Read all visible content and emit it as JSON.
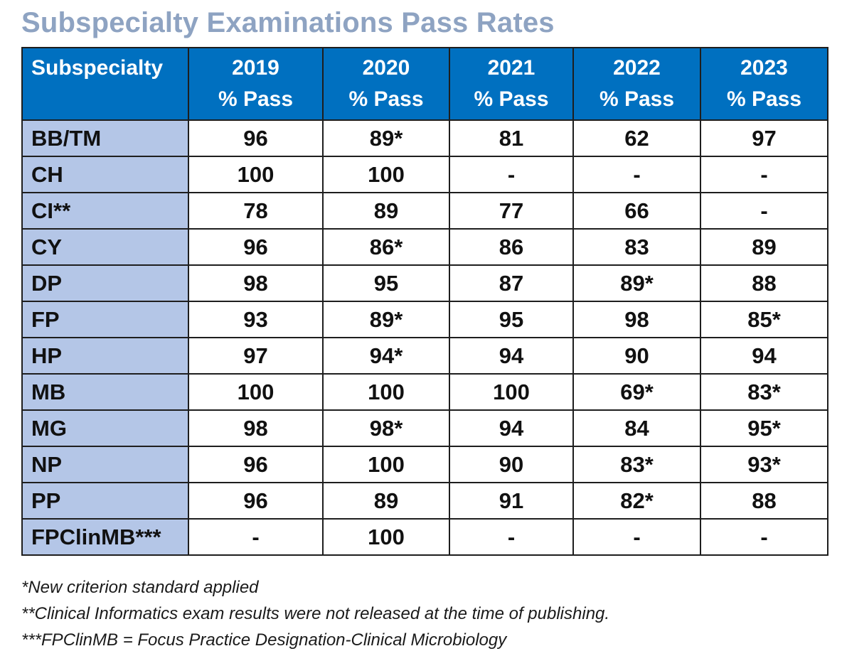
{
  "title": "Subspecialty Examinations Pass Rates",
  "table": {
    "header": {
      "first": "Subspecialty",
      "years": [
        {
          "year": "2019",
          "sub": "% Pass"
        },
        {
          "year": "2020",
          "sub": "% Pass"
        },
        {
          "year": "2021",
          "sub": "% Pass"
        },
        {
          "year": "2022",
          "sub": "% Pass"
        },
        {
          "year": "2023",
          "sub": "% Pass"
        }
      ]
    },
    "rows": [
      {
        "name": "BB/TM",
        "values": [
          "96",
          "89*",
          "81",
          "62",
          "97"
        ]
      },
      {
        "name": "CH",
        "values": [
          "100",
          "100",
          "-",
          "-",
          "-"
        ]
      },
      {
        "name": "CI**",
        "values": [
          "78",
          "89",
          "77",
          "66",
          "-"
        ]
      },
      {
        "name": "CY",
        "values": [
          "96",
          "86*",
          "86",
          "83",
          "89"
        ]
      },
      {
        "name": "DP",
        "values": [
          "98",
          "95",
          "87",
          "89*",
          "88"
        ]
      },
      {
        "name": "FP",
        "values": [
          "93",
          "89*",
          "95",
          "98",
          "85*"
        ]
      },
      {
        "name": "HP",
        "values": [
          "97",
          "94*",
          "94",
          "90",
          "94"
        ]
      },
      {
        "name": "MB",
        "values": [
          "100",
          "100",
          "100",
          "69*",
          "83*"
        ]
      },
      {
        "name": "MG",
        "values": [
          "98",
          "98*",
          "94",
          "84",
          "95*"
        ]
      },
      {
        "name": "NP",
        "values": [
          "96",
          "100",
          "90",
          "83*",
          "93*"
        ]
      },
      {
        "name": "PP",
        "values": [
          "96",
          "89",
          "91",
          "82*",
          "88"
        ]
      },
      {
        "name": "FPClinMB***",
        "values": [
          "-",
          "100",
          "-",
          "-",
          "-"
        ]
      }
    ]
  },
  "footnotes": [
    "*New criterion standard applied",
    "**Clinical Informatics exam results were not released at the time of publishing.",
    "***FPClinMB = Focus Practice Designation-Clinical Microbiology"
  ],
  "colors": {
    "title": "#8ea3c2",
    "header_bg": "#0070c0",
    "row_label_bg": "#b4c6e7"
  }
}
